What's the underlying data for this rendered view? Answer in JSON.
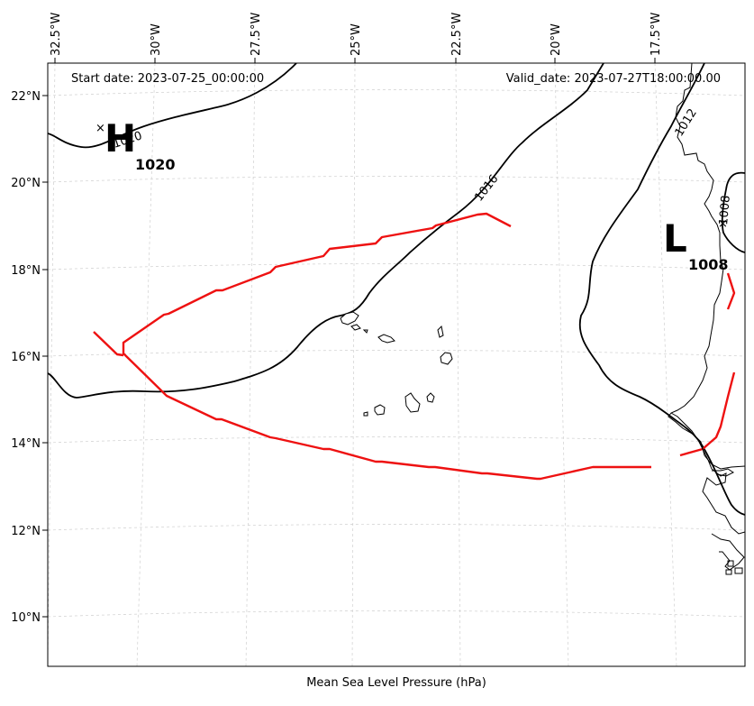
{
  "map": {
    "start_date": "Start date: 2023-07-25_00:00:00",
    "valid_date": "Valid_date: 2023-07-27T18:00:00.00",
    "caption": "Mean Sea Level Pressure (hPa)",
    "lon_ticks": [
      "32.5°W",
      "30°W",
      "27.5°W",
      "25°W",
      "22.5°W",
      "20°W",
      "17.5°W"
    ],
    "lat_ticks": [
      "22°N",
      "20°N",
      "18°N",
      "16°N",
      "14°N",
      "12°N",
      "10°N"
    ],
    "high": {
      "symbol": "H",
      "value": "1020",
      "marker": "×"
    },
    "low": {
      "symbol": "L",
      "value": "1008",
      "marker": "×"
    },
    "isobar_labels": [
      "1020",
      "1016",
      "1012",
      "1008"
    ],
    "colors": {
      "isobar": "#000000",
      "front": "#ee1111",
      "grid": "#cfcfcf"
    }
  }
}
